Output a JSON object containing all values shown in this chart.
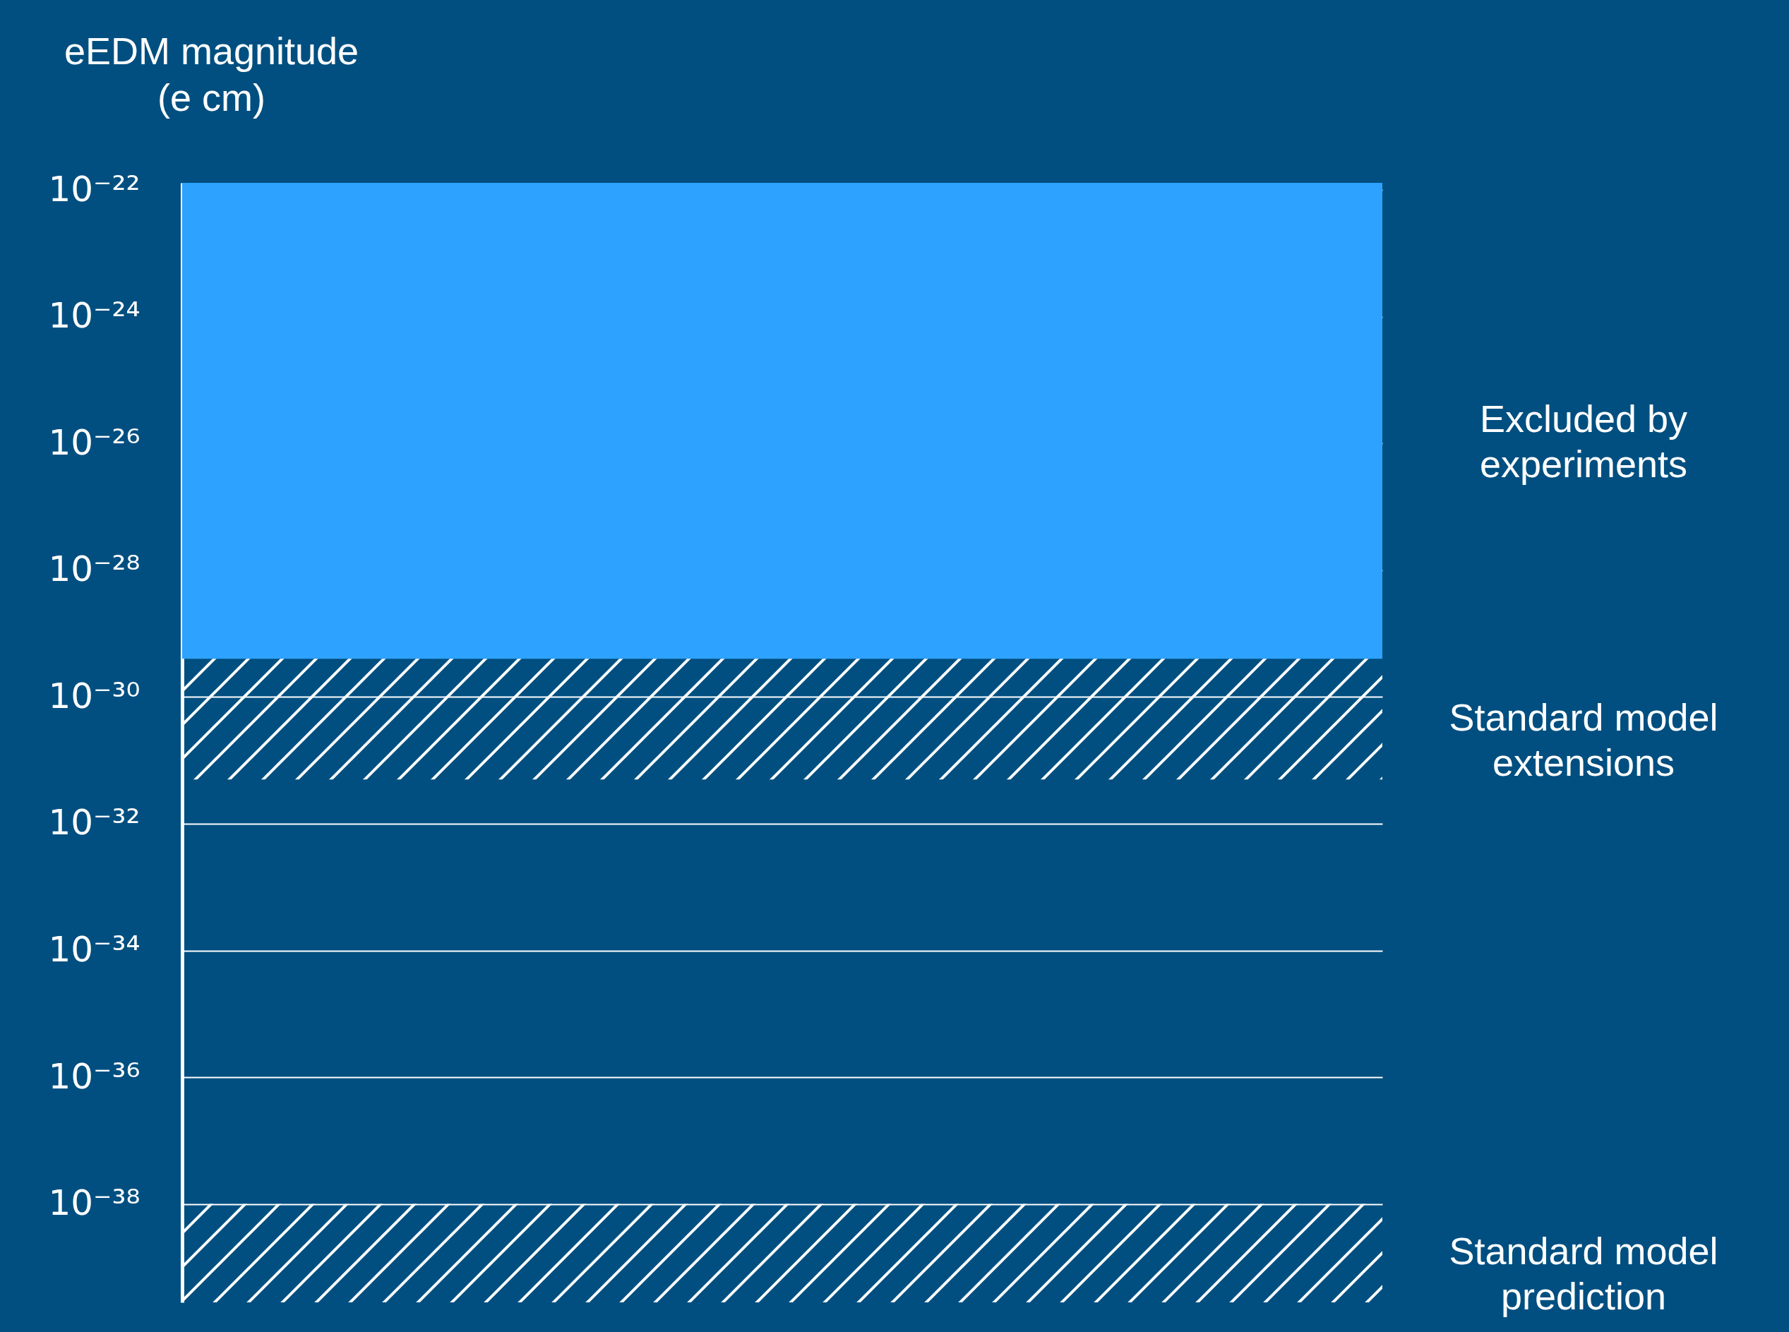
{
  "chart_data": {
    "type": "bar",
    "ylabel": "eEDM magnitude\n(e cm)",
    "log": true,
    "grid": "y",
    "legend": false,
    "categories": [
      null
    ],
    "ylim": [
      2.8e-40,
      1.3e-22
    ],
    "yticks": [
      {
        "value": 1e-22,
        "label": "10⁻²²"
      },
      {
        "value": 1e-24,
        "label": "10⁻²⁴"
      },
      {
        "value": 1e-26,
        "label": "10⁻²⁶"
      },
      {
        "value": 1e-28,
        "label": "10⁻²⁸"
      },
      {
        "value": 1e-30,
        "label": "10⁻³⁰"
      },
      {
        "value": 1e-32,
        "label": "10⁻³²"
      },
      {
        "value": 1e-34,
        "label": "10⁻³⁴"
      },
      {
        "value": 1e-36,
        "label": "10⁻³⁶"
      },
      {
        "value": 1e-38,
        "label": "10⁻³⁸"
      }
    ],
    "series": [
      {
        "name": "Excluded by\nexperiments",
        "color": "#2ea2ff",
        "base": [
          4e-30
        ],
        "values": [
          1.3e-22
        ]
      },
      {
        "name": "Standard model\nextensions",
        "color": "#ffffff",
        "base": [
          5e-32
        ],
        "values": [
          3.95e-30
        ]
      },
      {
        "name": "Standard model\nprediction",
        "color": "#ffffff",
        "base": [
          2.8e-40
        ],
        "values": [
          9.72e-39
        ]
      }
    ]
  }
}
